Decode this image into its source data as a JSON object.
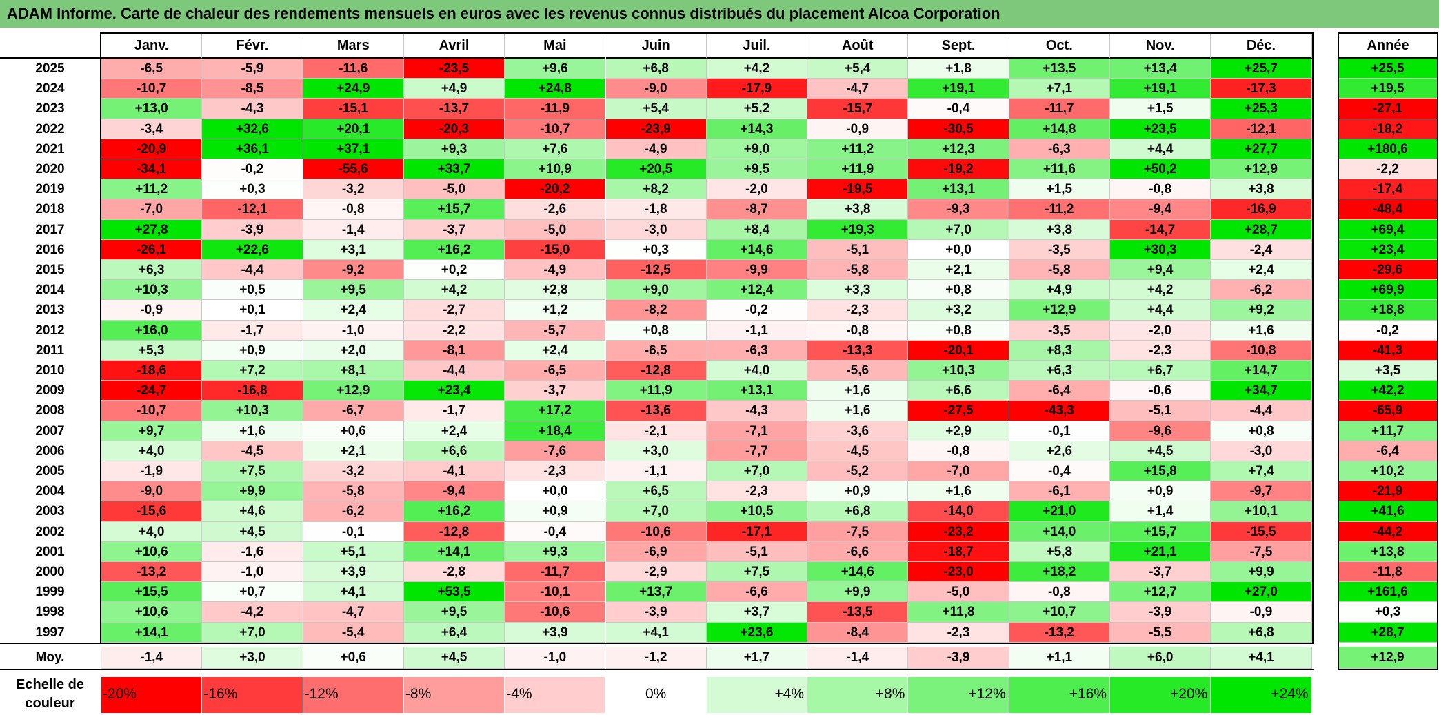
{
  "title": "ADAM Informe. Carte de chaleur des rendements mensuels en euros avec les revenus connus distribués du placement Alcoa Corporation",
  "chart_data": {
    "type": "heatmap",
    "columns": [
      "Janv.",
      "Févr.",
      "Mars",
      "Avril",
      "Mai",
      "Juin",
      "Juil.",
      "Août",
      "Sept.",
      "Oct.",
      "Nov.",
      "Déc."
    ],
    "year_header": "Année",
    "rows": [
      {
        "label": "2025",
        "values": [
          -6.5,
          -5.9,
          -11.6,
          -23.5,
          9.6,
          6.8,
          4.2,
          5.4,
          1.8,
          13.5,
          13.4,
          25.7
        ],
        "year": 25.5
      },
      {
        "label": "2024",
        "values": [
          -10.7,
          -8.5,
          24.9,
          4.9,
          24.8,
          -9.0,
          -17.9,
          -4.7,
          19.1,
          7.1,
          19.1,
          -17.3
        ],
        "year": 19.5
      },
      {
        "label": "2023",
        "values": [
          13.0,
          -4.3,
          -15.1,
          -13.7,
          -11.9,
          5.4,
          5.2,
          -15.7,
          -0.4,
          -11.7,
          1.5,
          25.3
        ],
        "year": -27.1
      },
      {
        "label": "2022",
        "values": [
          -3.4,
          32.6,
          20.1,
          -20.3,
          -10.7,
          -23.9,
          14.3,
          -0.9,
          -30.5,
          14.8,
          23.5,
          -12.1
        ],
        "year": -18.2
      },
      {
        "label": "2021",
        "values": [
          -20.9,
          36.1,
          37.1,
          9.3,
          7.6,
          -4.9,
          9.0,
          11.2,
          12.3,
          -6.3,
          4.4,
          27.7
        ],
        "year": 180.6
      },
      {
        "label": "2020",
        "values": [
          -34.1,
          -0.2,
          -55.6,
          33.7,
          10.9,
          20.5,
          9.5,
          11.9,
          -19.2,
          11.6,
          50.2,
          12.9
        ],
        "year": -2.2
      },
      {
        "label": "2019",
        "values": [
          11.2,
          0.3,
          -3.2,
          -5.0,
          -20.2,
          8.2,
          -2.0,
          -19.5,
          13.1,
          1.5,
          -0.8,
          3.8
        ],
        "year": -17.4
      },
      {
        "label": "2018",
        "values": [
          -7.0,
          -12.1,
          -0.8,
          15.7,
          -2.6,
          -1.8,
          -8.7,
          3.8,
          -9.3,
          -11.2,
          -9.4,
          -16.9
        ],
        "year": -48.4
      },
      {
        "label": "2017",
        "values": [
          27.8,
          -3.9,
          -1.4,
          -3.7,
          -5.0,
          -3.0,
          8.4,
          19.3,
          7.0,
          3.8,
          -14.7,
          28.7
        ],
        "year": 69.4
      },
      {
        "label": "2016",
        "values": [
          -26.1,
          22.6,
          3.1,
          16.2,
          -15.0,
          0.3,
          14.6,
          -5.1,
          0.0,
          -3.5,
          30.3,
          -2.4
        ],
        "year": 23.4
      },
      {
        "label": "2015",
        "values": [
          6.3,
          -4.4,
          -9.2,
          0.2,
          -4.9,
          -12.5,
          -9.9,
          -5.8,
          2.1,
          -5.8,
          9.4,
          2.4
        ],
        "year": -29.6
      },
      {
        "label": "2014",
        "values": [
          10.3,
          0.5,
          9.5,
          4.2,
          2.8,
          9.0,
          12.4,
          3.3,
          0.8,
          4.9,
          4.2,
          -6.2
        ],
        "year": 69.9
      },
      {
        "label": "2013",
        "values": [
          -0.9,
          0.1,
          2.4,
          -2.7,
          1.2,
          -8.2,
          -0.2,
          -2.3,
          3.2,
          12.9,
          4.4,
          9.2
        ],
        "year": 18.8
      },
      {
        "label": "2012",
        "values": [
          16.0,
          -1.7,
          -1.0,
          -2.2,
          -5.7,
          0.8,
          -1.1,
          -0.8,
          0.8,
          -3.5,
          -2.0,
          1.6
        ],
        "year": -0.2
      },
      {
        "label": "2011",
        "values": [
          5.3,
          0.9,
          2.0,
          -8.1,
          2.4,
          -6.5,
          -6.3,
          -13.3,
          -20.1,
          8.3,
          -2.3,
          -10.8
        ],
        "year": -41.3
      },
      {
        "label": "2010",
        "values": [
          -18.6,
          7.2,
          8.1,
          -4.4,
          -6.5,
          -12.8,
          4.0,
          -5.6,
          10.3,
          6.3,
          6.7,
          14.7
        ],
        "year": 3.5
      },
      {
        "label": "2009",
        "values": [
          -24.7,
          -16.8,
          12.9,
          23.4,
          -3.7,
          11.9,
          13.1,
          1.6,
          6.6,
          -6.4,
          -0.6,
          34.7
        ],
        "year": 42.2
      },
      {
        "label": "2008",
        "values": [
          -10.7,
          10.3,
          -6.7,
          -1.7,
          17.2,
          -13.6,
          -4.3,
          1.6,
          -27.5,
          -43.3,
          -5.1,
          -4.4
        ],
        "year": -65.9
      },
      {
        "label": "2007",
        "values": [
          9.7,
          1.6,
          0.6,
          2.4,
          18.4,
          -2.1,
          -7.1,
          -3.6,
          2.9,
          -0.1,
          -9.6,
          0.8
        ],
        "year": 11.7
      },
      {
        "label": "2006",
        "values": [
          4.0,
          -4.5,
          2.1,
          6.6,
          -7.6,
          3.0,
          -7.7,
          -4.5,
          -0.8,
          2.6,
          4.5,
          -3.0
        ],
        "year": -6.4
      },
      {
        "label": "2005",
        "values": [
          -1.9,
          7.5,
          -3.2,
          -4.1,
          -2.3,
          -1.1,
          7.0,
          -5.2,
          -7.0,
          -0.4,
          15.8,
          7.4
        ],
        "year": 10.2
      },
      {
        "label": "2004",
        "values": [
          -9.0,
          9.9,
          -5.8,
          -9.4,
          0.0,
          6.5,
          -2.3,
          0.9,
          1.6,
          -6.1,
          0.9,
          -9.7
        ],
        "year": -21.9
      },
      {
        "label": "2003",
        "values": [
          -15.6,
          4.6,
          -6.2,
          16.2,
          0.9,
          7.0,
          10.5,
          6.8,
          -14.0,
          21.0,
          1.4,
          10.1
        ],
        "year": 41.6
      },
      {
        "label": "2002",
        "values": [
          4.0,
          4.5,
          -0.1,
          -12.8,
          -0.4,
          -10.6,
          -17.1,
          -7.5,
          -23.2,
          14.0,
          15.7,
          -15.5
        ],
        "year": -44.2
      },
      {
        "label": "2001",
        "values": [
          10.6,
          -1.6,
          5.1,
          14.1,
          9.3,
          -6.9,
          -5.1,
          -6.6,
          -18.7,
          5.8,
          21.1,
          -7.5
        ],
        "year": 13.8
      },
      {
        "label": "2000",
        "values": [
          -13.2,
          -1.0,
          3.9,
          -2.8,
          -11.7,
          -2.9,
          7.5,
          14.6,
          -23.0,
          18.2,
          -3.7,
          9.9
        ],
        "year": -11.8
      },
      {
        "label": "1999",
        "values": [
          15.5,
          0.7,
          4.1,
          53.5,
          -10.1,
          13.7,
          -6.6,
          9.9,
          -5.0,
          -0.8,
          12.7,
          27.0
        ],
        "year": 161.6
      },
      {
        "label": "1998",
        "values": [
          10.6,
          -4.2,
          -4.7,
          9.5,
          -10.6,
          -3.9,
          3.7,
          -13.5,
          11.8,
          10.7,
          -3.9,
          -0.9
        ],
        "year": 0.3
      },
      {
        "label": "1997",
        "values": [
          14.1,
          7.0,
          -5.4,
          6.4,
          3.9,
          4.1,
          23.6,
          -8.4,
          -2.3,
          -13.2,
          -5.5,
          6.8
        ],
        "year": 28.7
      }
    ],
    "average": {
      "label": "Moy.",
      "values": [
        -1.4,
        3.0,
        0.6,
        4.5,
        -1.0,
        -1.2,
        1.7,
        -1.4,
        -3.9,
        1.1,
        6.0,
        4.1
      ],
      "year": 12.9
    },
    "color_scale": {
      "label": "Echelle de couleur",
      "steps": [
        {
          "label": "-20%",
          "color": "#ff0000"
        },
        {
          "label": "-16%",
          "color": "#ff3b3b"
        },
        {
          "label": "-12%",
          "color": "#ff6e6e"
        },
        {
          "label": "-8%",
          "color": "#ff9d9d"
        },
        {
          "label": "-4%",
          "color": "#ffcdcd"
        },
        {
          "label": "0%",
          "color": "#ffffff"
        },
        {
          "label": "+4%",
          "color": "#d4fbd4"
        },
        {
          "label": "+8%",
          "color": "#a6f7a6"
        },
        {
          "label": "+12%",
          "color": "#7bf27b"
        },
        {
          "label": "+16%",
          "color": "#4eee4e"
        },
        {
          "label": "+20%",
          "color": "#27ea27"
        },
        {
          "label": "+24%",
          "color": "#00e600"
        }
      ]
    }
  }
}
